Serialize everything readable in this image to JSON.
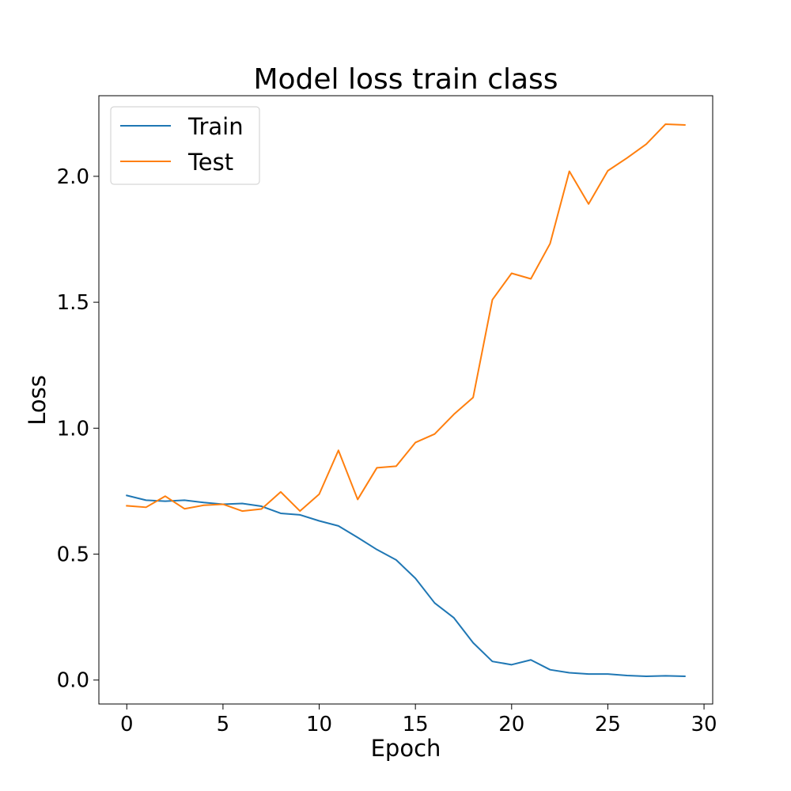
{
  "chart_data": {
    "type": "line",
    "title": "Model loss train class",
    "xlabel": "Epoch",
    "ylabel": "Loss",
    "xlim": [
      -1.45,
      30.45
    ],
    "ylim": [
      -0.095,
      2.32
    ],
    "xticks": [
      0,
      5,
      10,
      15,
      20,
      25,
      30
    ],
    "xtick_labels": [
      "0",
      "5",
      "10",
      "15",
      "20",
      "25",
      "30"
    ],
    "yticks": [
      0.0,
      0.5,
      1.0,
      1.5,
      2.0
    ],
    "ytick_labels": [
      "0.0",
      "0.5",
      "1.0",
      "1.5",
      "2.0"
    ],
    "grid": false,
    "legend_position": "top-left",
    "x": [
      0,
      1,
      2,
      3,
      4,
      5,
      6,
      7,
      8,
      9,
      10,
      11,
      12,
      13,
      14,
      15,
      16,
      17,
      18,
      19,
      20,
      21,
      22,
      23,
      24,
      25,
      26,
      27,
      28,
      29
    ],
    "series": [
      {
        "name": "Train",
        "color": "#1f77b4",
        "values": [
          0.733,
          0.714,
          0.71,
          0.714,
          0.705,
          0.698,
          0.701,
          0.69,
          0.662,
          0.656,
          0.632,
          0.612,
          0.566,
          0.518,
          0.477,
          0.404,
          0.306,
          0.247,
          0.148,
          0.074,
          0.061,
          0.08,
          0.041,
          0.029,
          0.024,
          0.024,
          0.018,
          0.015,
          0.017,
          0.015
        ]
      },
      {
        "name": "Test",
        "color": "#ff7f0e",
        "values": [
          0.692,
          0.686,
          0.73,
          0.68,
          0.694,
          0.698,
          0.671,
          0.679,
          0.747,
          0.671,
          0.738,
          0.912,
          0.717,
          0.843,
          0.849,
          0.943,
          0.977,
          1.055,
          1.122,
          1.51,
          1.615,
          1.593,
          1.733,
          2.02,
          1.89,
          2.022,
          2.073,
          2.128,
          2.207,
          2.204
        ]
      }
    ]
  }
}
